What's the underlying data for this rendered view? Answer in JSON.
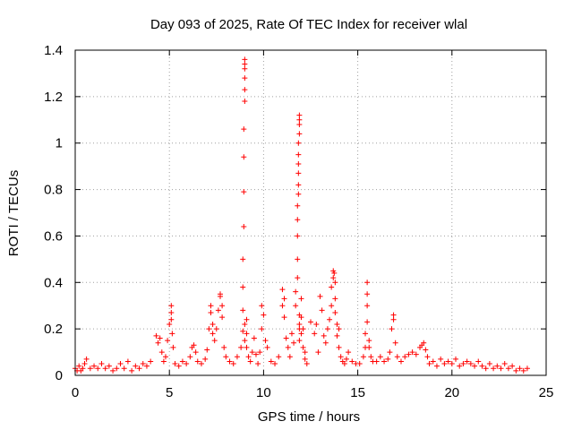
{
  "chart_data": {
    "type": "scatter",
    "title": "Day 093 of 2025, Rate Of TEC Index for receiver wlal",
    "xlabel": "GPS time / hours",
    "ylabel": "ROTI / TECUs",
    "xlim": [
      0,
      25
    ],
    "ylim": [
      0,
      1.4
    ],
    "xticks": [
      "0",
      "5",
      "10",
      "15",
      "20",
      "25"
    ],
    "yticks": [
      "0",
      "0.2",
      "0.4",
      "0.6",
      "0.8",
      "1",
      "1.2",
      "1.4"
    ],
    "grid": true,
    "marker": "+",
    "color": "#ff0000",
    "series": [
      {
        "x": [
          0.0,
          0.1,
          0.2,
          0.3,
          0.4,
          0.5,
          0.6,
          0.8,
          1.0,
          1.2,
          1.4,
          1.6,
          1.8,
          2.0,
          2.2,
          2.4,
          2.6,
          2.8,
          3.0,
          3.2,
          3.4,
          3.6,
          3.8,
          4.0,
          4.3,
          4.4,
          4.5,
          4.6,
          4.7,
          4.8,
          4.9,
          5.0,
          5.1,
          5.1,
          5.1,
          5.15,
          5.2,
          5.3,
          5.5,
          5.7,
          5.9,
          6.1,
          6.2,
          6.3,
          6.4,
          6.5,
          6.7,
          6.9,
          7.0,
          7.1,
          7.2,
          7.2,
          7.3,
          7.3,
          7.4,
          7.5,
          7.6,
          7.7,
          7.7,
          7.8,
          7.8,
          7.9,
          8.0,
          8.2,
          8.4,
          8.6,
          8.8,
          8.9,
          8.9,
          8.9,
          8.9,
          8.95,
          8.95,
          8.95,
          8.95,
          9.0,
          9.0,
          9.0,
          9.0,
          9.0,
          9.0,
          9.0,
          9.0,
          9.1,
          9.1,
          9.1,
          9.2,
          9.3,
          9.4,
          9.5,
          9.6,
          9.7,
          9.8,
          9.9,
          9.9,
          10.0,
          10.1,
          10.2,
          10.4,
          10.6,
          10.8,
          11.0,
          11.0,
          11.1,
          11.1,
          11.2,
          11.3,
          11.4,
          11.5,
          11.6,
          11.7,
          11.7,
          11.8,
          11.8,
          11.8,
          11.8,
          11.8,
          11.85,
          11.85,
          11.85,
          11.85,
          11.85,
          11.85,
          11.9,
          11.9,
          11.9,
          11.9,
          11.9,
          11.9,
          11.9,
          11.9,
          12.0,
          12.0,
          12.0,
          12.1,
          12.1,
          12.2,
          12.2,
          12.3,
          12.5,
          12.7,
          12.8,
          12.9,
          13.0,
          13.1,
          13.2,
          13.3,
          13.4,
          13.5,
          13.6,
          13.6,
          13.7,
          13.7,
          13.75,
          13.8,
          13.8,
          13.8,
          13.9,
          13.9,
          14.0,
          14.0,
          14.1,
          14.2,
          14.3,
          14.4,
          14.5,
          14.7,
          14.9,
          15.1,
          15.3,
          15.4,
          15.4,
          15.5,
          15.5,
          15.5,
          15.5,
          15.6,
          15.6,
          15.7,
          15.8,
          16.0,
          16.2,
          16.4,
          16.6,
          16.7,
          16.8,
          16.9,
          16.9,
          17.0,
          17.1,
          17.3,
          17.5,
          17.7,
          17.9,
          18.1,
          18.3,
          18.4,
          18.5,
          18.6,
          18.7,
          18.8,
          19.0,
          19.2,
          19.4,
          19.6,
          19.8,
          20.0,
          20.2,
          20.4,
          20.6,
          20.8,
          21.0,
          21.2,
          21.4,
          21.6,
          21.8,
          22.0,
          22.2,
          22.4,
          22.6,
          22.8,
          23.0,
          23.2,
          23.4,
          23.6,
          23.8,
          24.0
        ],
        "y": [
          0.03,
          0.02,
          0.04,
          0.02,
          0.03,
          0.05,
          0.07,
          0.03,
          0.04,
          0.03,
          0.05,
          0.03,
          0.04,
          0.02,
          0.03,
          0.05,
          0.03,
          0.06,
          0.02,
          0.04,
          0.03,
          0.05,
          0.04,
          0.06,
          0.17,
          0.14,
          0.16,
          0.1,
          0.06,
          0.08,
          0.15,
          0.22,
          0.3,
          0.27,
          0.24,
          0.18,
          0.12,
          0.05,
          0.04,
          0.06,
          0.05,
          0.08,
          0.12,
          0.13,
          0.1,
          0.06,
          0.05,
          0.07,
          0.11,
          0.2,
          0.3,
          0.27,
          0.22,
          0.18,
          0.15,
          0.2,
          0.28,
          0.34,
          0.35,
          0.3,
          0.25,
          0.12,
          0.08,
          0.06,
          0.05,
          0.08,
          0.12,
          0.19,
          0.28,
          0.38,
          0.5,
          0.64,
          0.79,
          0.94,
          1.06,
          1.18,
          1.23,
          1.28,
          1.32,
          1.34,
          1.36,
          0.22,
          0.15,
          0.24,
          0.18,
          0.12,
          0.08,
          0.06,
          0.1,
          0.16,
          0.09,
          0.05,
          0.1,
          0.2,
          0.3,
          0.26,
          0.15,
          0.12,
          0.06,
          0.05,
          0.08,
          0.3,
          0.37,
          0.33,
          0.25,
          0.16,
          0.12,
          0.08,
          0.18,
          0.14,
          0.3,
          0.36,
          0.42,
          0.5,
          0.6,
          0.67,
          0.73,
          0.78,
          0.82,
          0.87,
          0.91,
          0.95,
          1.0,
          1.04,
          1.08,
          1.1,
          1.12,
          0.26,
          0.22,
          0.2,
          0.15,
          0.33,
          0.25,
          0.18,
          0.2,
          0.12,
          0.1,
          0.07,
          0.05,
          0.23,
          0.18,
          0.22,
          0.1,
          0.34,
          0.28,
          0.17,
          0.14,
          0.2,
          0.24,
          0.3,
          0.38,
          0.42,
          0.45,
          0.44,
          0.4,
          0.33,
          0.27,
          0.22,
          0.17,
          0.12,
          0.2,
          0.08,
          0.06,
          0.05,
          0.07,
          0.1,
          0.06,
          0.05,
          0.05,
          0.08,
          0.12,
          0.18,
          0.23,
          0.3,
          0.35,
          0.4,
          0.15,
          0.12,
          0.08,
          0.06,
          0.06,
          0.08,
          0.06,
          0.07,
          0.1,
          0.2,
          0.26,
          0.24,
          0.14,
          0.08,
          0.06,
          0.08,
          0.09,
          0.1,
          0.09,
          0.12,
          0.13,
          0.14,
          0.11,
          0.08,
          0.05,
          0.06,
          0.04,
          0.07,
          0.05,
          0.06,
          0.05,
          0.07,
          0.04,
          0.05,
          0.06,
          0.05,
          0.04,
          0.06,
          0.04,
          0.03,
          0.05,
          0.03,
          0.04,
          0.03,
          0.05,
          0.03,
          0.04,
          0.02,
          0.03,
          0.02,
          0.03
        ]
      }
    ]
  }
}
